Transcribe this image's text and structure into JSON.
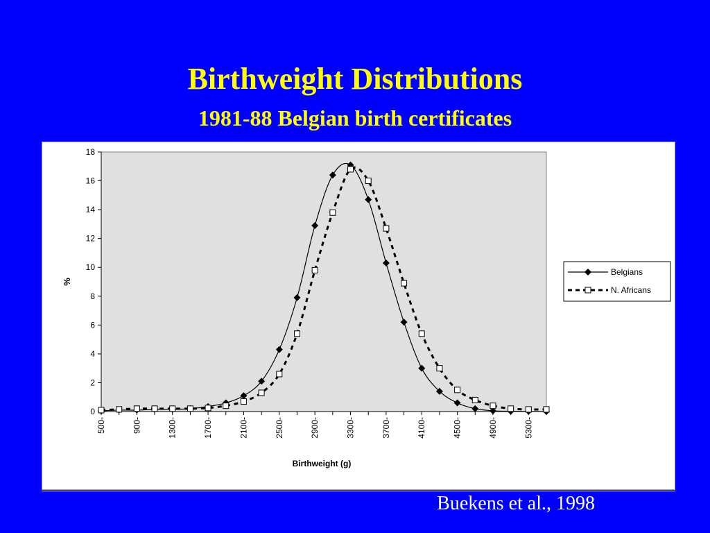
{
  "slide": {
    "title": "Birthweight Distributions",
    "subtitle": "1981-88 Belgian birth certificates",
    "citation": "Buekens et al., 1998"
  },
  "colors": {
    "background": "#0000ff",
    "title": "#ffff00",
    "plot_area": "#e0e0e0"
  },
  "chart_data": {
    "type": "line",
    "title": "",
    "xlabel": "Birthweight (g)",
    "ylabel": "%",
    "x": [
      500,
      700,
      900,
      1100,
      1300,
      1500,
      1700,
      1900,
      2100,
      2300,
      2500,
      2700,
      2900,
      3100,
      3300,
      3500,
      3700,
      3900,
      4100,
      4300,
      4500,
      4700,
      4900,
      5100,
      5300,
      5500
    ],
    "x_tick_labels": [
      "500-",
      "900-",
      "1300-",
      "1700-",
      "2100-",
      "2500-",
      "2900-",
      "3300-",
      "3700-",
      "4100-",
      "4500-",
      "4900-",
      "5300-"
    ],
    "y_ticks": [
      0,
      2,
      4,
      6,
      8,
      10,
      12,
      14,
      16,
      18
    ],
    "ylim": [
      0,
      18
    ],
    "grid": false,
    "legend_position": "right",
    "series": [
      {
        "name": "Belgians",
        "style": "solid",
        "marker": "diamond",
        "values": [
          0.05,
          0.1,
          0.1,
          0.15,
          0.15,
          0.2,
          0.35,
          0.6,
          1.1,
          2.1,
          4.3,
          7.9,
          12.9,
          16.4,
          17.1,
          14.7,
          10.3,
          6.2,
          3.0,
          1.4,
          0.6,
          0.2,
          0.05,
          0.02,
          0.01,
          0.0
        ]
      },
      {
        "name": "N. Africans",
        "style": "dashed",
        "marker": "square",
        "values": [
          0.1,
          0.15,
          0.2,
          0.2,
          0.2,
          0.2,
          0.25,
          0.4,
          0.7,
          1.3,
          2.6,
          5.4,
          9.8,
          13.8,
          16.8,
          16.0,
          12.7,
          8.9,
          5.4,
          3.0,
          1.5,
          0.8,
          0.4,
          0.2,
          0.15,
          0.15
        ]
      }
    ]
  }
}
